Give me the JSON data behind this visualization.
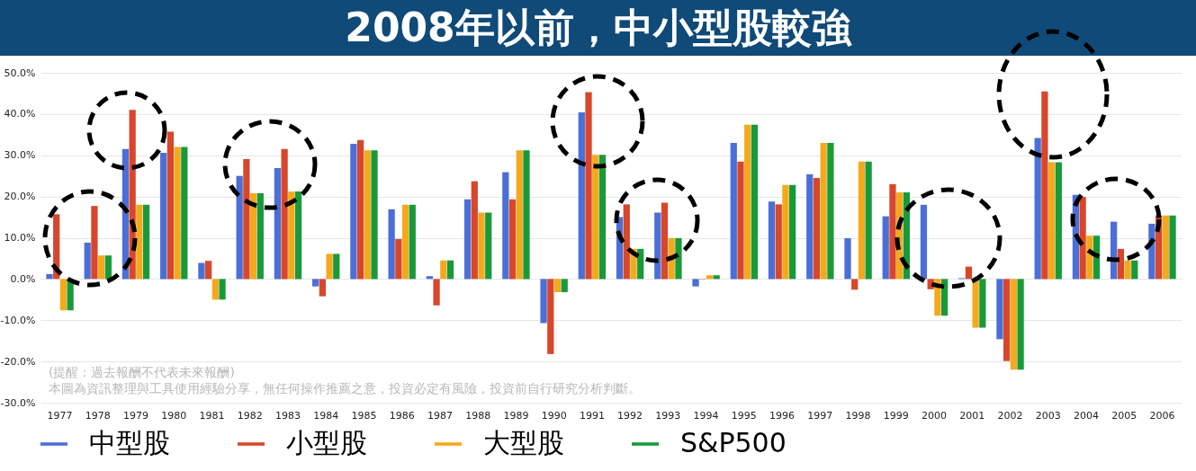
{
  "chart_data": {
    "type": "bar",
    "title": "2008年以前，中小型股較強",
    "categories": [
      "1977",
      "1978",
      "1979",
      "1980",
      "1981",
      "1982",
      "1983",
      "1984",
      "1985",
      "1986",
      "1987",
      "1988",
      "1989",
      "1990",
      "1991",
      "1992",
      "1993",
      "1994",
      "1995",
      "1996",
      "1997",
      "1998",
      "1999",
      "2000",
      "2001",
      "2002",
      "2003",
      "2004",
      "2005",
      "2006"
    ],
    "series": [
      {
        "name": "中型股",
        "color": "#4a6fd6",
        "values": [
          1.2,
          8.8,
          31.5,
          30.6,
          3.9,
          25.0,
          26.9,
          -1.8,
          32.8,
          16.9,
          0.7,
          19.3,
          25.9,
          -10.7,
          40.4,
          15.0,
          16.1,
          -1.8,
          33.0,
          18.8,
          25.4,
          9.9,
          15.2,
          18.0,
          0.2,
          -14.6,
          34.2,
          20.4,
          13.9,
          13.4
        ]
      },
      {
        "name": "小型股",
        "color": "#d8472b",
        "values": [
          15.7,
          17.7,
          41.0,
          35.7,
          4.4,
          29.1,
          31.5,
          -4.2,
          33.7,
          9.7,
          -6.4,
          23.7,
          19.3,
          -18.2,
          45.3,
          18.1,
          18.5,
          -0.1,
          28.5,
          18.1,
          24.5,
          -2.6,
          23.0,
          -2.5,
          3.0,
          -19.9,
          45.5,
          19.9,
          7.3,
          15.4
        ]
      },
      {
        "name": "大型股",
        "color": "#f4a91d",
        "values": [
          -7.6,
          5.7,
          18.0,
          32.0,
          -5.0,
          20.8,
          21.2,
          6.1,
          31.2,
          18.0,
          4.5,
          16.1,
          31.2,
          -3.2,
          30.1,
          7.3,
          9.9,
          0.9,
          37.4,
          22.8,
          33.0,
          28.5,
          21.0,
          -8.9,
          -11.8,
          -22.0,
          28.3,
          10.5,
          4.5,
          15.4
        ]
      },
      {
        "name": "S&P500",
        "color": "#199a3a",
        "values": [
          -7.6,
          5.7,
          18.0,
          32.0,
          -5.0,
          20.8,
          21.2,
          6.1,
          31.2,
          18.0,
          4.5,
          16.1,
          31.2,
          -3.2,
          30.1,
          7.3,
          9.9,
          0.9,
          37.4,
          22.8,
          33.0,
          28.5,
          21.0,
          -8.9,
          -11.8,
          -22.0,
          28.3,
          10.5,
          4.5,
          15.4
        ]
      }
    ],
    "ylim": [
      -30,
      50
    ],
    "yticks": [
      {
        "value": -30,
        "label": "-30.0%"
      },
      {
        "value": -20,
        "label": "-20.0%"
      },
      {
        "value": -10,
        "label": "-10.0%"
      },
      {
        "value": 0,
        "label": "0.0%"
      },
      {
        "value": 10,
        "label": "10.0%"
      },
      {
        "value": 20,
        "label": "20.0%"
      },
      {
        "value": 30,
        "label": "30.0%"
      },
      {
        "value": 40,
        "label": "40.0%"
      },
      {
        "value": 50,
        "label": "50.0%"
      }
    ],
    "grid": "y",
    "legend": "bottom",
    "annotations": [
      "(提醒：過去報酬不代表未來報酬)",
      "本圖為資訊整理與工具使用經驗分享，無任何操作推薦之意，投資必定有風險，投資前自行研究分析判斷。"
    ]
  }
}
